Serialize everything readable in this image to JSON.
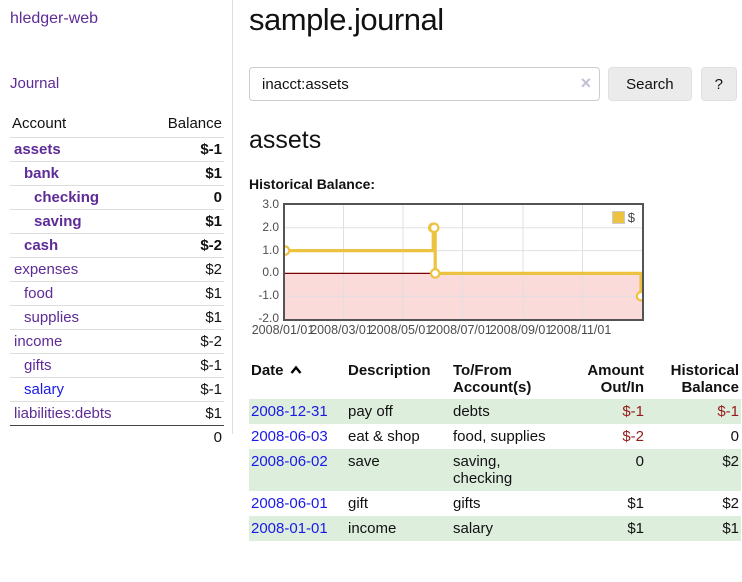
{
  "sidebar": {
    "brand": "hledger-web",
    "nav_journal": "Journal",
    "accounts_table": {
      "headers": [
        "Account",
        "Balance"
      ],
      "rows": [
        {
          "name": "assets",
          "balance": "$-1",
          "depth": 1,
          "bold": true,
          "neg": "strong"
        },
        {
          "name": "bank",
          "balance": "$1",
          "depth": 2,
          "bold": true,
          "neg": "none"
        },
        {
          "name": "checking",
          "balance": "0",
          "depth": 3,
          "bold": true,
          "neg": "none"
        },
        {
          "name": "saving",
          "balance": "$1",
          "depth": 3,
          "bold": true,
          "neg": "none"
        },
        {
          "name": "cash",
          "balance": "$-2",
          "depth": 2,
          "bold": true,
          "neg": "strong"
        },
        {
          "name": "expenses",
          "balance": "$2",
          "depth": 1,
          "bold": false,
          "neg": "none"
        },
        {
          "name": "food",
          "balance": "$1",
          "depth": 2,
          "bold": false,
          "neg": "none"
        },
        {
          "name": "supplies",
          "balance": "$1",
          "depth": 2,
          "bold": false,
          "neg": "none"
        },
        {
          "name": "income",
          "balance": "$-2",
          "depth": 1,
          "bold": false,
          "neg": "muted"
        },
        {
          "name": "gifts",
          "balance": "$-1",
          "depth": 2,
          "bold": false,
          "neg": "muted"
        },
        {
          "name": "salary",
          "balance": "$-1",
          "depth": 2,
          "bold": false,
          "neg": "muted",
          "blue": true
        },
        {
          "name": "liabilities:debts",
          "balance": "$1",
          "depth": 1,
          "bold": false,
          "neg": "none"
        }
      ],
      "total": "0"
    }
  },
  "main": {
    "title": "sample.journal",
    "search": {
      "value": "inacct:assets",
      "clear_icon": "×",
      "search_button": "Search",
      "help_button": "?"
    },
    "account_heading": "assets",
    "chart_label": "Historical Balance:",
    "register_table": {
      "headers": [
        "Date",
        "Description",
        "To/From Account(s)",
        "Amount Out/In",
        "Historical Balance"
      ],
      "rows": [
        {
          "date": "2008-12-31",
          "description": "pay off",
          "accounts": "debts",
          "amount": "$-1",
          "balance": "$-1",
          "amount_neg": true,
          "balance_neg": true
        },
        {
          "date": "2008-06-03",
          "description": "eat & shop",
          "accounts": "food, supplies",
          "amount": "$-2",
          "balance": "0",
          "amount_neg": true,
          "balance_neg": false
        },
        {
          "date": "2008-06-02",
          "description": "save",
          "accounts": "saving,\nchecking",
          "amount": "0",
          "balance": "$2",
          "amount_neg": false,
          "balance_neg": false
        },
        {
          "date": "2008-06-01",
          "description": "gift",
          "accounts": "gifts",
          "amount": "$1",
          "balance": "$2",
          "amount_neg": false,
          "balance_neg": false
        },
        {
          "date": "2008-01-01",
          "description": "income",
          "accounts": "salary",
          "amount": "$1",
          "balance": "$1",
          "amount_neg": false,
          "balance_neg": false
        }
      ]
    }
  },
  "chart_data": {
    "type": "line",
    "title": "Historical Balance",
    "series": [
      {
        "name": "$",
        "color": "#EDC240",
        "step": true,
        "points": [
          [
            "2008-01-01",
            1.0
          ],
          [
            "2008-06-01",
            2.0
          ],
          [
            "2008-06-02",
            2.0
          ],
          [
            "2008-06-03",
            0.0
          ],
          [
            "2008-12-31",
            -1.0
          ]
        ]
      }
    ],
    "xlim": [
      "2008-01-01",
      "2009-01-01"
    ],
    "ylim": [
      -2.0,
      3.0
    ],
    "yticks": [
      3.0,
      2.0,
      1.0,
      0.0,
      -1.0,
      -2.0
    ],
    "xticks": [
      {
        "date": "2008-01-01",
        "label": "2008/01/01"
      },
      {
        "date": "2008-03-01",
        "label": "2008/03/01"
      },
      {
        "date": "2008-05-01",
        "label": "2008/05/01"
      },
      {
        "date": "2008-07-01",
        "label": "2008/07/01"
      },
      {
        "date": "2008-09-01",
        "label": "2008/09/01"
      },
      {
        "date": "2008-11-01",
        "label": "2008/11/01"
      }
    ],
    "grid": true,
    "grid_color": "#e0e0e0",
    "border_color": "#545454",
    "zero_line_color": "#7a0000",
    "negative_region_color": "#fbdada",
    "legend_position": "top-right"
  }
}
